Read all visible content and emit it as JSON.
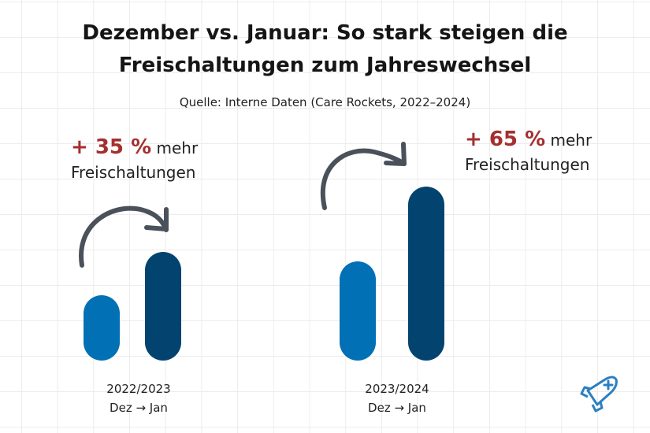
{
  "title_line1": "Dezember vs. Januar: So stark steigen die",
  "title_line2": "Freischaltungen zum Jahreswechsel",
  "subtitle": "Quelle: Interne Daten (Care Rockets, 2022–2024)",
  "colors": {
    "dez": "#0270b5",
    "jan": "#03436f",
    "highlight": "#a3302f",
    "arrow": "#4a515b",
    "logo": "#2b7fc0"
  },
  "logo_icon": "rocket-plus-icon",
  "chart_data": {
    "type": "bar",
    "title": "Dezember vs. Januar: So stark steigen die Freischaltungen zum Jahreswechsel",
    "grid": false,
    "groups": [
      {
        "label_line1": "2022/2023",
        "label_line2": "Dez → Jan",
        "values": {
          "Dez": 100,
          "Jan": 135
        },
        "change": "+ 35 %",
        "change_text1": "mehr",
        "change_text2": "Freischaltungen"
      },
      {
        "label_line1": "2023/2024",
        "label_line2": "Dez → Jan",
        "values": {
          "Dez": 100,
          "Jan": 165
        },
        "change": "+ 65 %",
        "change_text1": "mehr",
        "change_text2": "Freischaltungen"
      }
    ]
  }
}
